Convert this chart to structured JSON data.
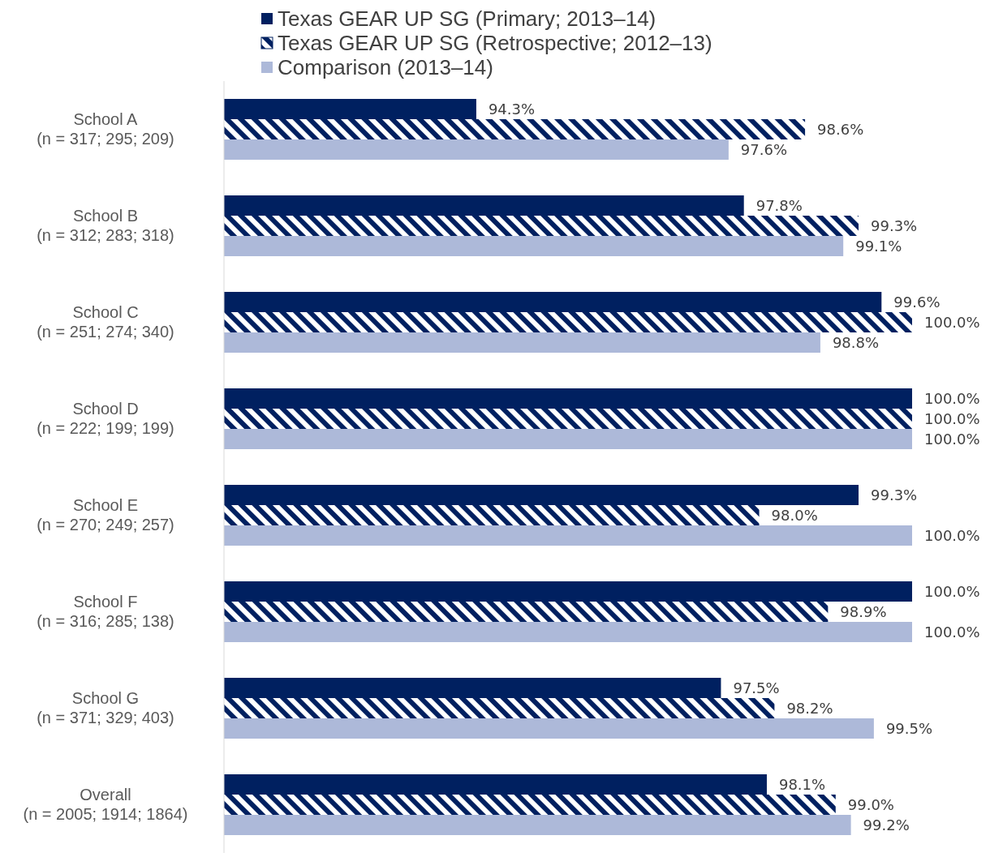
{
  "chart_data": {
    "type": "bar",
    "orientation": "horizontal",
    "legend": "top",
    "tick_labels": "y",
    "xlim": [
      91,
      100
    ],
    "categories": [
      "School A\n(n = 317; 295; 209)",
      "School B\n(n = 312; 283; 318)",
      "School C\n(n = 251; 274; 340)",
      "School D\n(n = 222; 199; 199)",
      "School E\n(n = 270; 249; 257)",
      "School F\n(n = 316; 285; 138)",
      "School G\n(n = 371; 329; 403)",
      "Overall\n(n = 2005; 1914; 1864)"
    ],
    "series": [
      {
        "name": "Texas GEAR UP SG (Primary; 2013–14)",
        "color": "#002060",
        "values": [
          94.3,
          97.8,
          99.6,
          100.0,
          99.3,
          100.0,
          97.5,
          98.1
        ],
        "value_labels": [
          "94.3%",
          "97.8%",
          "99.6%",
          "100.0%",
          "99.3%",
          "100.0%",
          "97.5%",
          "98.1%"
        ]
      },
      {
        "name": "Texas GEAR UP SG (Retrospective; 2012–13)",
        "color": "#002060",
        "values": [
          98.6,
          99.3,
          100.0,
          100.0,
          98.0,
          98.9,
          98.2,
          99.0
        ],
        "value_labels": [
          "98.6%",
          "99.3%",
          "100.0%",
          "100.0%",
          "98.0%",
          "98.9%",
          "98.2%",
          "99.0%"
        ]
      },
      {
        "name": "Comparison (2013–14)",
        "color": "#adb9d9",
        "values": [
          97.6,
          99.1,
          98.8,
          100.0,
          100.0,
          100.0,
          99.5,
          99.2
        ],
        "value_labels": [
          "97.6%",
          "99.1%",
          "98.8%",
          "100.0%",
          "100.0%",
          "100.0%",
          "99.5%",
          "99.2%"
        ]
      }
    ]
  }
}
